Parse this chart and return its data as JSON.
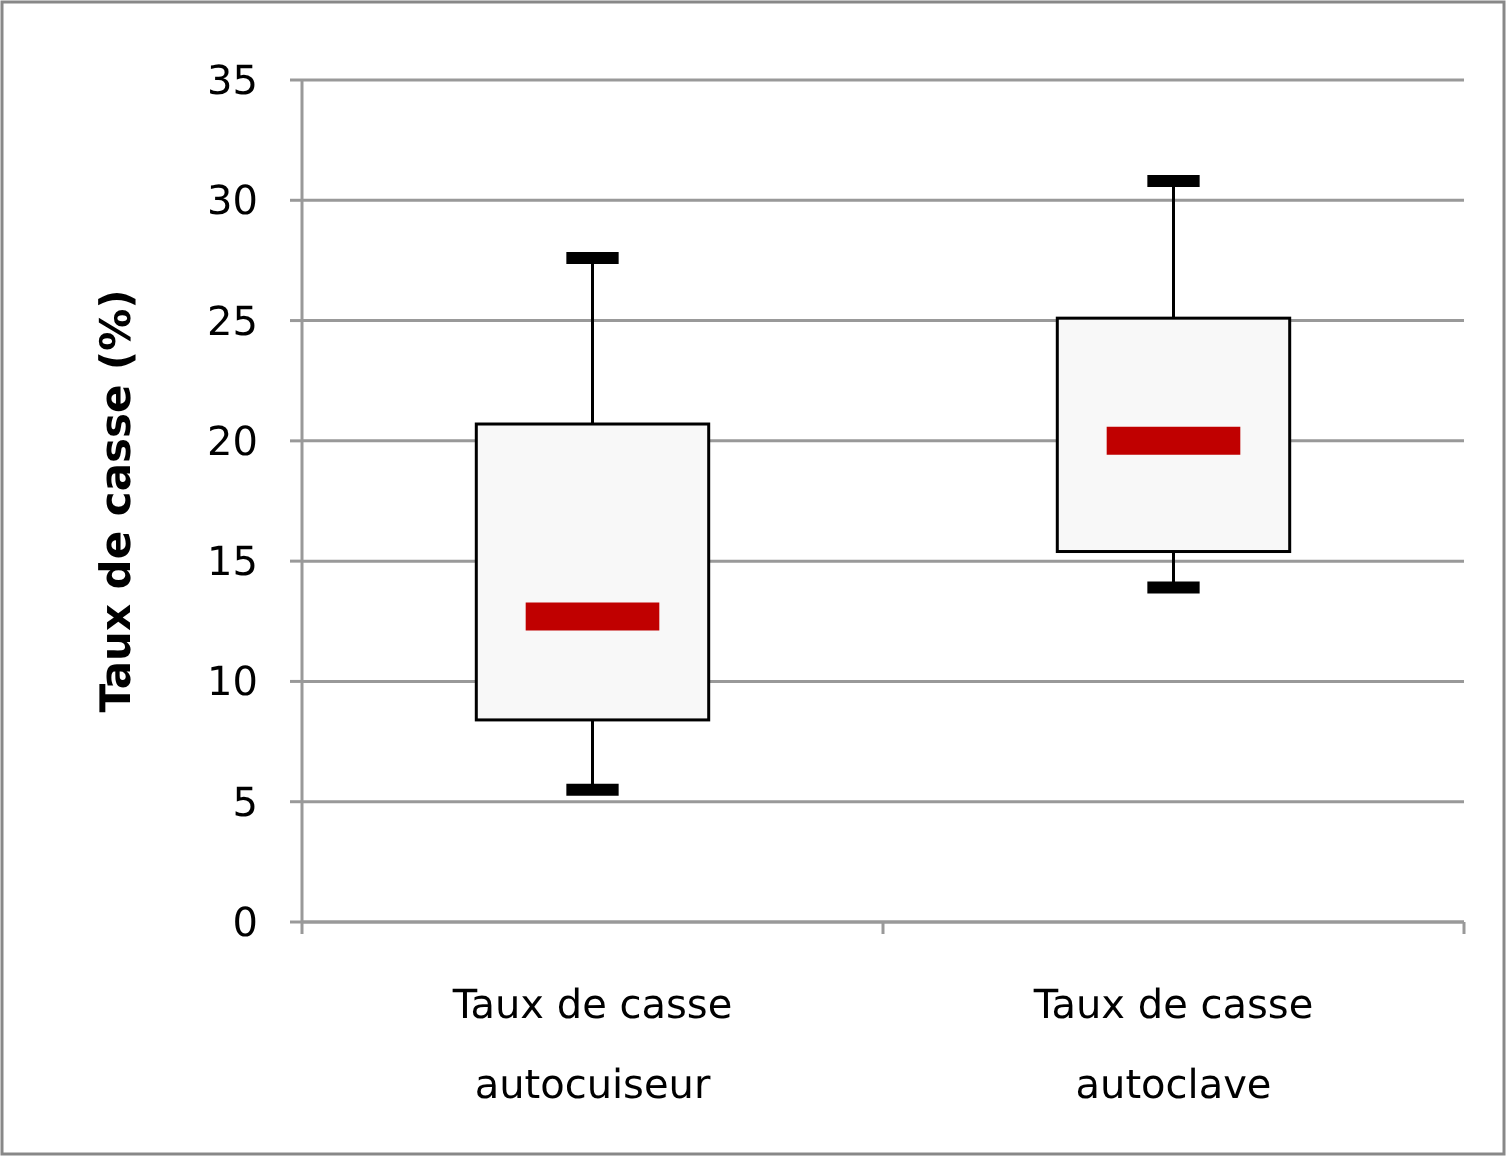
{
  "chart_data": {
    "type": "box",
    "ylabel": "Taux de casse (%)",
    "categories": [
      "Taux de casse autocuiseur",
      "Taux de casse autoclave"
    ],
    "boxes": [
      {
        "low": 5.5,
        "q1": 8.4,
        "median": 12.7,
        "q3": 20.7,
        "high": 27.6
      },
      {
        "low": 13.9,
        "q1": 15.4,
        "median": 20.0,
        "q3": 25.1,
        "high": 30.8
      }
    ],
    "color": "#f8f8f8",
    "ylim": [
      0,
      35
    ],
    "yticks": [
      0,
      5,
      10,
      15,
      20,
      25,
      30,
      35
    ],
    "grid": "y"
  }
}
